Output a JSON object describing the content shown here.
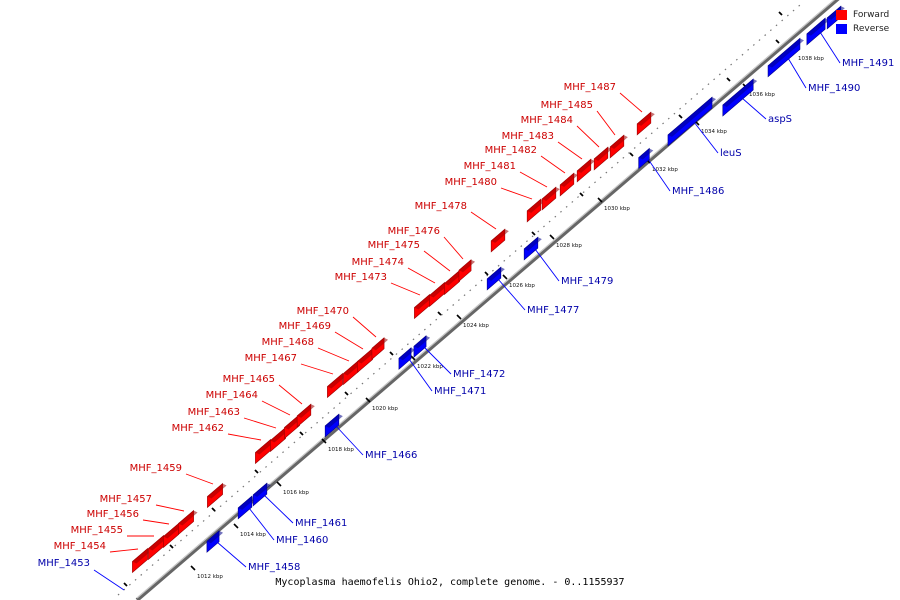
{
  "caption": "Mycoplasma haemofelis Ohio2, complete genome. - 0..1155937",
  "legend": {
    "forward_label": "Forward",
    "reverse_label": "Reverse",
    "forward_color": "#ff0000",
    "reverse_color": "#0000ff"
  },
  "colors": {
    "forward_label": "#cc0000",
    "reverse_label": "#0000aa",
    "backbone": "#888888"
  },
  "ticks": [
    "1012 kbp",
    "1014 kbp",
    "1016 kbp",
    "1018 kbp",
    "1020 kbp",
    "1022 kbp",
    "1024 kbp",
    "1026 kbp",
    "1028 kbp",
    "1030 kbp",
    "1032 kbp",
    "1034 kbp",
    "1036 kbp",
    "1038 kbp"
  ],
  "forward_genes": [
    "MHF_1454",
    "MHF_1455",
    "MHF_1456",
    "MHF_1457",
    "MHF_1459",
    "MHF_1462",
    "MHF_1463",
    "MHF_1464",
    "MHF_1465",
    "MHF_1467",
    "MHF_1468",
    "MHF_1469",
    "MHF_1470",
    "MHF_1473",
    "MHF_1474",
    "MHF_1475",
    "MHF_1476",
    "MHF_1478",
    "MHF_1480",
    "MHF_1481",
    "MHF_1482",
    "MHF_1483",
    "MHF_1484",
    "MHF_1485",
    "MHF_1487"
  ],
  "reverse_genes": [
    "MHF_1453",
    "MHF_1458",
    "MHF_1460",
    "MHF_1461",
    "MHF_1466",
    "MHF_1471",
    "MHF_1472",
    "MHF_1477",
    "MHF_1479",
    "MHF_1486",
    "leuS",
    "aspS",
    "MHF_1490",
    "MHF_1491"
  ]
}
